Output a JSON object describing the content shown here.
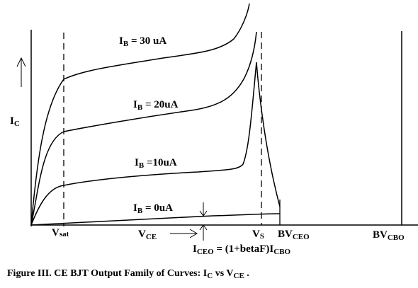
{
  "axes": {
    "y_label": "I",
    "y_label_sub": "C",
    "x_label": "V",
    "x_label_sub": "CE"
  },
  "markers": {
    "vsat": "Vsat",
    "vs_main": "V",
    "vs_sub": "S",
    "bvceo_main": "BV",
    "bvceo_sub": "CEO",
    "bvcbo_main": "BV",
    "bvcbo_sub": "CBO"
  },
  "curves": [
    {
      "main": "I",
      "sub": "B",
      "value": " = 30 uA"
    },
    {
      "main": "I",
      "sub": "B",
      "value": " = 20uA"
    },
    {
      "main": "I",
      "sub": "B",
      "value": " =10uA"
    },
    {
      "main": "I",
      "sub": "B",
      "value": " = 0uA"
    }
  ],
  "iceo": {
    "main": "I",
    "sub": "CEO",
    "mid": " =  (1+betaF)I",
    "sub2": "CBO"
  },
  "caption": {
    "prefix": "Figure III. CE BJT Output Family of Curves: I",
    "sub1": "C",
    "mid": "  vs V",
    "sub2": "CE",
    "suffix": " ."
  }
}
